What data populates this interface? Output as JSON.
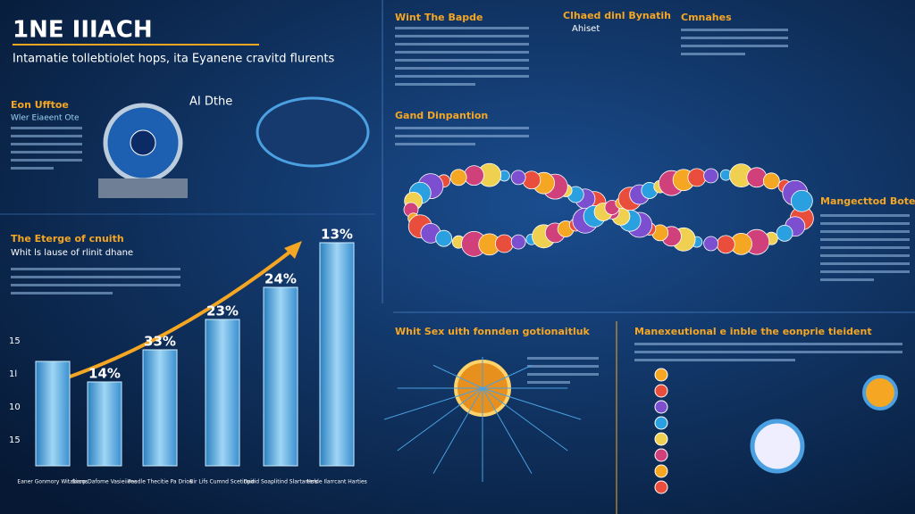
{
  "header": {
    "title": "1NE IIIACH",
    "subtitle": "Intamatie tollebtiolet hops, ita Eyanene cravitd flurents"
  },
  "left_panel": {
    "heading": "Eon Ufftoe",
    "subheading": "Wler Eiaeent Ote",
    "badge": "AI Dthe"
  },
  "growth": {
    "heading": "The Eterge of cnuith",
    "subheading": "Whit ls lause of rlinit dhane",
    "axis_labels": [
      "15",
      "1l",
      "10",
      "15"
    ],
    "bar_labels": [
      "14%",
      "33%",
      "23%",
      "24%",
      "13%"
    ],
    "categories": [
      "Eaner Gonmory Witabrons",
      "Siarp Dafome Vasieiioes",
      "Poedle Thecitie Pa Drios",
      "Bir Lifs Cumnd Scetinpin",
      "Dadid Soaplitind Slartarters",
      "Holde Ilarrcant Harties"
    ]
  },
  "sections": {
    "top_middle": "Wint The Bapde",
    "middle": "Gand Dinpantion",
    "top_center": "Clhaed dinl Bynatih",
    "top_center_sub": "Ahiset",
    "top_right": "Cmnahes",
    "right": "Mangecttod Boted tadvides",
    "bottom_middle": "Whit Sex uith fonnden gotionaitluk",
    "bottom_right": "Manexeutional e inble the eonprie tieident"
  }
}
